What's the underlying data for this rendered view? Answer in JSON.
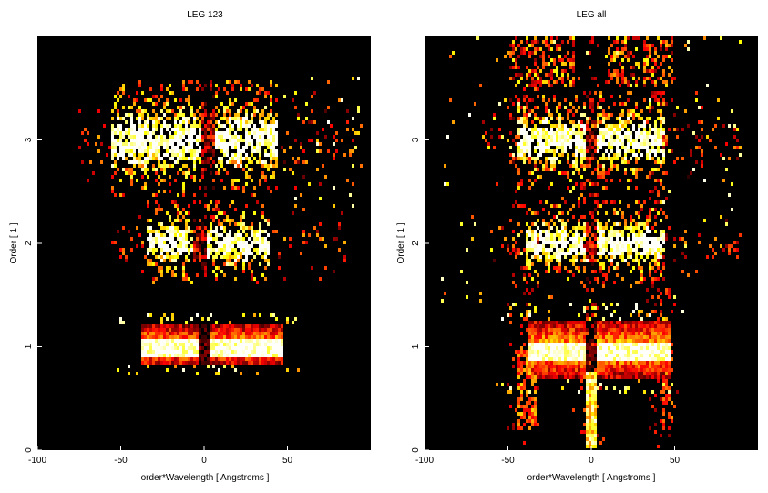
{
  "chart_data": [
    {
      "type": "heatmap",
      "title": "LEG 123",
      "xlabel": "order*Wavelength [ Angstroms ]",
      "ylabel": "Order [ 1 ]",
      "xlim": [
        -100,
        100
      ],
      "ylim": [
        0,
        4
      ],
      "xticks": [
        -100,
        -50,
        0,
        50
      ],
      "yticks": [
        0,
        1,
        2,
        3
      ],
      "colormap": "black-red-orange-yellow-white (hot)",
      "bands": [
        {
          "order": 1,
          "y_range": [
            0.82,
            1.2
          ],
          "x_range": [
            -38,
            48
          ],
          "gap_at": 0,
          "intensity": "saturated core"
        },
        {
          "order": 2,
          "y_range": [
            1.75,
            2.25
          ],
          "x_range": [
            -35,
            40
          ],
          "gap_at": -2,
          "intensity": "medium"
        },
        {
          "order": 3,
          "y_range": [
            2.65,
            3.35
          ],
          "x_range": [
            -55,
            45
          ],
          "gap_at": 3,
          "intensity": "medium"
        }
      ],
      "background": "none"
    },
    {
      "type": "heatmap",
      "title": "LEG all",
      "xlabel": "order*Wavelength [ Angstroms ]",
      "ylabel": "Order [ 1 ]",
      "xlim": [
        -100,
        100
      ],
      "ylim": [
        0,
        4
      ],
      "xticks": [
        -100,
        -50,
        0,
        50
      ],
      "yticks": [
        0,
        1,
        2,
        3
      ],
      "colormap": "black-red-orange-yellow-white (hot)",
      "bands": [
        {
          "order": 1,
          "y_range": [
            0.7,
            1.25
          ],
          "x_range": [
            -38,
            48
          ],
          "gap_at": 0,
          "intensity": "saturated core"
        },
        {
          "order": 2,
          "y_range": [
            1.75,
            2.25
          ],
          "x_range": [
            -40,
            45
          ],
          "gap_at": 0,
          "intensity": "medium"
        },
        {
          "order": 3,
          "y_range": [
            2.7,
            3.3
          ],
          "x_range": [
            -45,
            45
          ],
          "gap_at": 0,
          "intensity": "medium"
        }
      ],
      "background": "diffuse streaks at x≈-40, x≈0 and x≈40 across all orders"
    }
  ]
}
